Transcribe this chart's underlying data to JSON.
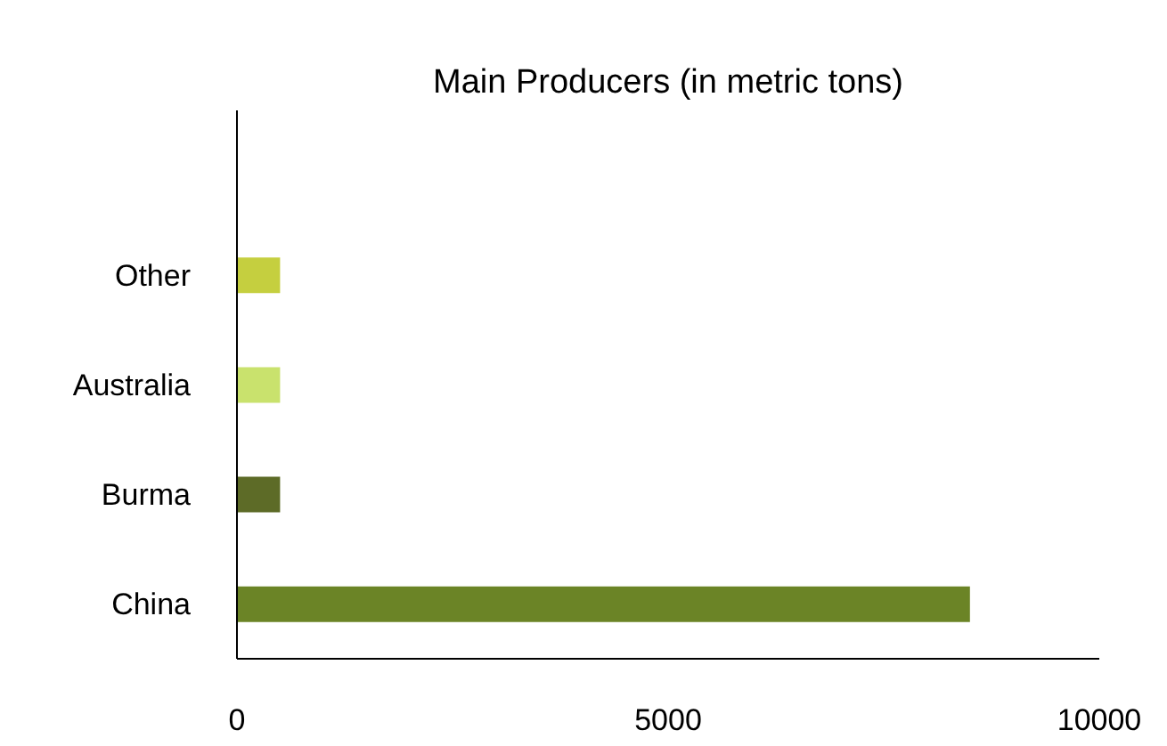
{
  "chart_data": {
    "type": "bar",
    "orientation": "horizontal",
    "title": "Main Producers (in metric tons)",
    "categories": [
      null,
      "Other",
      "Australia",
      "Burma",
      "China"
    ],
    "values": [
      null,
      500,
      500,
      500,
      8500
    ],
    "colors": [
      "#6b8426",
      "#c5cf3f",
      "#c9e26d",
      "#5d6b27",
      "#6b8426"
    ],
    "xlim": [
      0,
      10000
    ],
    "xticks": [
      0,
      5000,
      10000
    ]
  }
}
